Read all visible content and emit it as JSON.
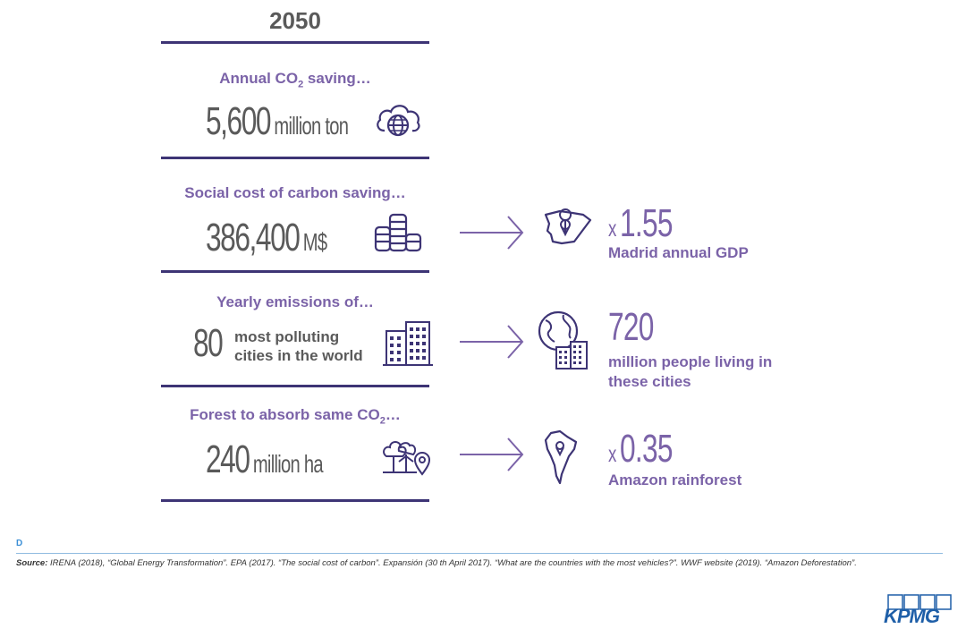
{
  "header": {
    "year": "2050"
  },
  "rows": [
    {
      "label_main": "Annual CO",
      "label_sub": "2",
      "label_tail": " saving…",
      "value": "5,600",
      "unit": "million ton",
      "icon": "cloud-globe-icon"
    },
    {
      "label_main": "Social cost of carbon saving…",
      "value": "386,400",
      "unit": "M$",
      "icon": "coin-stack-icon",
      "result": {
        "prefix": "x",
        "value": "1.55",
        "label": "Madrid annual GDP",
        "icon": "spain-map-icon"
      }
    },
    {
      "label_main": "Yearly emissions of…",
      "value": "80",
      "desc_line1": "most polluting",
      "desc_line2": "cities in the world",
      "icon": "buildings-icon",
      "result": {
        "value": "720",
        "label_line1": "million people living in",
        "label_line2": "these cities",
        "icon": "globe-city-icon"
      }
    },
    {
      "label_main": "Forest to absorb same CO",
      "label_sub": "2",
      "label_tail": "…",
      "value": "240",
      "unit": "million ha",
      "icon": "forest-pin-icon",
      "result": {
        "prefix": "x",
        "value": "0.35",
        "label": "Amazon rainforest",
        "icon": "south-america-map-icon"
      }
    }
  ],
  "footer": {
    "letter": "D",
    "source_label": "Source:",
    "source_text": " IRENA (2018), “Global Energy Transformation”. EPA (2017). “The social cost of carbon”. Expansión (30 th April 2017). “What are the countries with the most vehicles?”. WWF website (2019). “Amazon Deforestation”.",
    "logo": "KPMG"
  },
  "colors": {
    "purple": "#7b63a8",
    "navy": "#3d3475",
    "gray": "#5a5a5a",
    "blue": "#1f5fa8"
  }
}
